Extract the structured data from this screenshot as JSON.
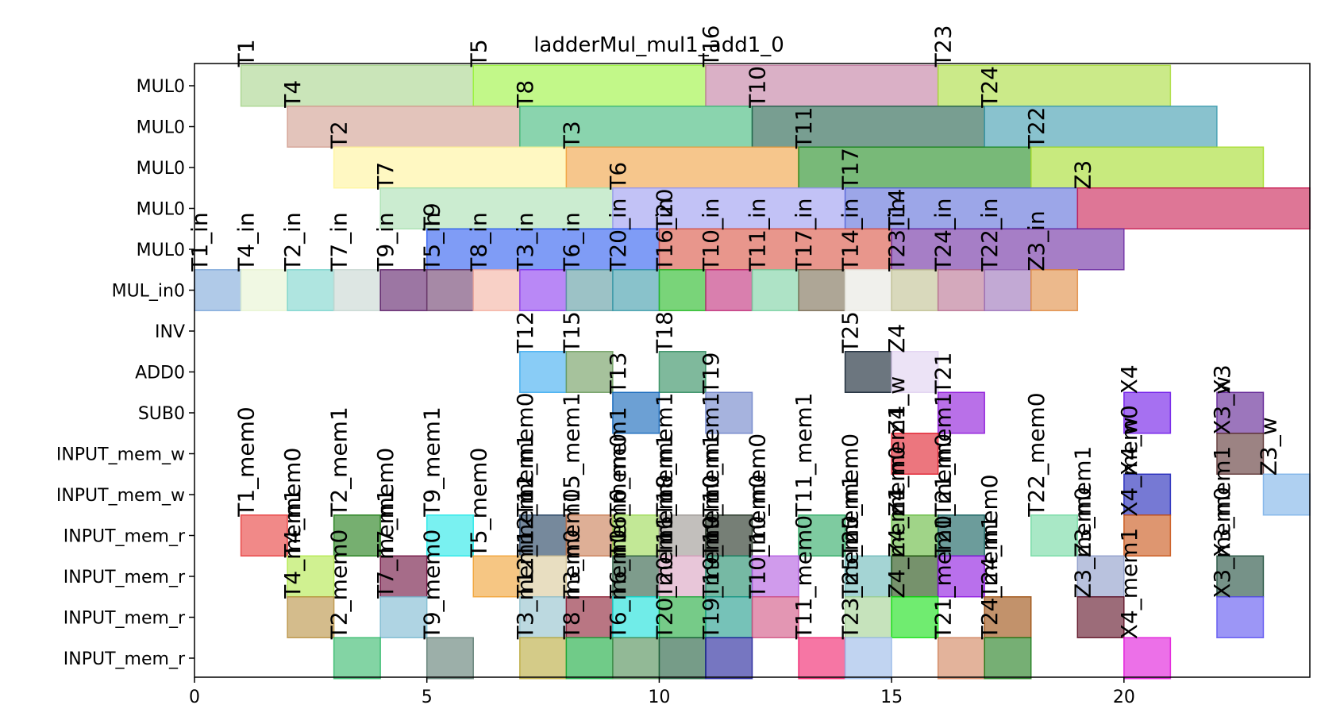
{
  "chart_data": {
    "type": "gantt",
    "title": "ladderMul_mul1_add1_0",
    "xlim": [
      0,
      24
    ],
    "x_ticks": [
      0,
      5,
      10,
      15,
      20
    ],
    "rows": [
      "MUL0",
      "MUL0",
      "MUL0",
      "MUL0",
      "MUL0",
      "MUL_in0",
      "INV",
      "ADD0",
      "SUB0",
      "INPUT_mem_w",
      "INPUT_mem_w",
      "INPUT_mem_r",
      "INPUT_mem_r",
      "INPUT_mem_r",
      "INPUT_mem_r"
    ],
    "tasks": [
      {
        "row": 0,
        "start": 1,
        "end": 6,
        "label": "T1",
        "color": "#a6d38a"
      },
      {
        "row": 0,
        "start": 6,
        "end": 11,
        "label": "T5",
        "color": "#9af33a"
      },
      {
        "row": 0,
        "start": 11,
        "end": 16,
        "label": "T16",
        "color": "#c27ba0"
      },
      {
        "row": 0,
        "start": 16,
        "end": 21,
        "label": "T23",
        "color": "#a8dc3a"
      },
      {
        "row": 1,
        "start": 2,
        "end": 7,
        "label": "T4",
        "color": "#d19c8e"
      },
      {
        "row": 1,
        "start": 7,
        "end": 12,
        "label": "T8",
        "color": "#3cb878"
      },
      {
        "row": 1,
        "start": 12,
        "end": 17,
        "label": "T10",
        "color": "#1e5e48"
      },
      {
        "row": 1,
        "start": 17,
        "end": 22,
        "label": "T24",
        "color": "#3a9aae"
      },
      {
        "row": 2,
        "start": 3,
        "end": 8,
        "label": "T2",
        "color": "#fff49a"
      },
      {
        "row": 2,
        "start": 8,
        "end": 13,
        "label": "T3",
        "color": "#f0a040"
      },
      {
        "row": 2,
        "start": 13,
        "end": 18,
        "label": "T11",
        "color": "#1e8a1e"
      },
      {
        "row": 2,
        "start": 18,
        "end": 23,
        "label": "T22",
        "color": "#a4dc28"
      },
      {
        "row": 3,
        "start": 4,
        "end": 9,
        "label": "T7",
        "color": "#a8e0b0"
      },
      {
        "row": 3,
        "start": 9,
        "end": 14,
        "label": "T6",
        "color": "#9a9af0"
      },
      {
        "row": 3,
        "start": 14,
        "end": 19,
        "label": "T17",
        "color": "#5a6ad8"
      },
      {
        "row": 3,
        "start": 19,
        "end": 24,
        "label": "Z3",
        "color": "#c81a50"
      },
      {
        "row": 4,
        "start": 5,
        "end": 10,
        "label": "T9",
        "color": "#2a5af0"
      },
      {
        "row": 4,
        "start": 10,
        "end": 15,
        "label": "T20",
        "color": "#d85040"
      },
      {
        "row": 4,
        "start": 15,
        "end": 20,
        "label": "T14",
        "color": "#6a28a0"
      },
      {
        "row": 5,
        "start": 0,
        "end": 1,
        "label": "T1_in",
        "color": "#7ba6d8"
      },
      {
        "row": 5,
        "start": 1,
        "end": 2,
        "label": "T4_in",
        "color": "#e6f4d0"
      },
      {
        "row": 5,
        "start": 2,
        "end": 3,
        "label": "T2_in",
        "color": "#7ad4cc"
      },
      {
        "row": 5,
        "start": 3,
        "end": 4,
        "label": "T7_in",
        "color": "#c6d6d0"
      },
      {
        "row": 5,
        "start": 4,
        "end": 5,
        "label": "T9_in",
        "color": "#5a1a66"
      },
      {
        "row": 5,
        "start": 5,
        "end": 6,
        "label": "T5_in",
        "color": "#6a3a6a"
      },
      {
        "row": 5,
        "start": 6,
        "end": 7,
        "label": "T8_in",
        "color": "#f4b0a0"
      },
      {
        "row": 5,
        "start": 7,
        "end": 8,
        "label": "T3_in",
        "color": "#8a38f0"
      },
      {
        "row": 5,
        "start": 8,
        "end": 9,
        "label": "T6_in",
        "color": "#5a9aa0"
      },
      {
        "row": 5,
        "start": 9,
        "end": 10,
        "label": "T20_in",
        "color": "#3a9aa8"
      },
      {
        "row": 5,
        "start": 10,
        "end": 11,
        "label": "T16_in",
        "color": "#20b820"
      },
      {
        "row": 5,
        "start": 11,
        "end": 12,
        "label": "T10_in",
        "color": "#c02a78"
      },
      {
        "row": 5,
        "start": 12,
        "end": 13,
        "label": "T11_in",
        "color": "#78d0a0"
      },
      {
        "row": 5,
        "start": 13,
        "end": 14,
        "label": "T17_in",
        "color": "#786a50"
      },
      {
        "row": 5,
        "start": 14,
        "end": 15,
        "label": "T14_in",
        "color": "#e6e6e0"
      },
      {
        "row": 5,
        "start": 15,
        "end": 16,
        "label": "T23_in",
        "color": "#c0c090"
      },
      {
        "row": 5,
        "start": 16,
        "end": 17,
        "label": "T24_in",
        "color": "#b87090"
      },
      {
        "row": 5,
        "start": 17,
        "end": 18,
        "label": "T22_in",
        "color": "#9a70b8"
      },
      {
        "row": 5,
        "start": 18,
        "end": 19,
        "label": "Z3_in",
        "color": "#e08a40"
      },
      {
        "row": 7,
        "start": 7,
        "end": 8,
        "label": "T12",
        "color": "#3aaaf0"
      },
      {
        "row": 7,
        "start": 8,
        "end": 9,
        "label": "T15",
        "color": "#6a9a5a"
      },
      {
        "row": 7,
        "start": 10,
        "end": 11,
        "label": "T18",
        "color": "#2a8a5a"
      },
      {
        "row": 7,
        "start": 14,
        "end": 15,
        "label": "T25",
        "color": "#0a1a2a"
      },
      {
        "row": 7,
        "start": 15,
        "end": 16,
        "label": "Z4",
        "color": "#e0d0f0"
      },
      {
        "row": 8,
        "start": 9,
        "end": 10,
        "label": "T13",
        "color": "#0a60b8"
      },
      {
        "row": 8,
        "start": 11,
        "end": 12,
        "label": "T19",
        "color": "#6a80c8"
      },
      {
        "row": 8,
        "start": 16,
        "end": 17,
        "label": "T21",
        "color": "#8a10d8"
      },
      {
        "row": 8,
        "start": 20,
        "end": 21,
        "label": "X4",
        "color": "#6a10e8"
      },
      {
        "row": 8,
        "start": 22,
        "end": 23,
        "label": "X3",
        "color": "#5a1a90"
      },
      {
        "row": 9,
        "start": 15,
        "end": 16,
        "label": "Z4_w",
        "color": "#e01a28"
      },
      {
        "row": 9,
        "start": 22,
        "end": 23,
        "label": "X3_w",
        "color": "#5a3030"
      },
      {
        "row": 10,
        "start": 20,
        "end": 21,
        "label": "X4_w",
        "color": "#1a20b8"
      },
      {
        "row": 10,
        "start": 23,
        "end": 24,
        "label": "Z3_w",
        "color": "#7ab0e8"
      },
      {
        "row": 11,
        "start": 1,
        "end": 2,
        "label": "T1_mem0",
        "color": "#e83a38"
      },
      {
        "row": 11,
        "start": 3,
        "end": 4,
        "label": "T2_mem1",
        "color": "#1a7a10"
      },
      {
        "row": 11,
        "start": 5,
        "end": 6,
        "label": "T9_mem1",
        "color": "#20e8e8"
      },
      {
        "row": 11,
        "start": 7,
        "end": 8,
        "label": "T12_mem0",
        "color": "#1a3a5a"
      },
      {
        "row": 11,
        "start": 8,
        "end": 9,
        "label": "T15_mem1",
        "color": "#c87a50"
      },
      {
        "row": 11,
        "start": 9,
        "end": 10,
        "label": "T6_mem1",
        "color": "#9ad850"
      },
      {
        "row": 11,
        "start": 10,
        "end": 11,
        "label": "T18_mem1",
        "color": "#9a9490"
      },
      {
        "row": 11,
        "start": 11,
        "end": 12,
        "label": "T10_mem1",
        "color": "#1a2a1a"
      },
      {
        "row": 11,
        "start": 13,
        "end": 14,
        "label": "T11_mem1",
        "color": "#28a860"
      },
      {
        "row": 11,
        "start": 15,
        "end": 16,
        "label": "Z4_mem1",
        "color": "#60b838"
      },
      {
        "row": 11,
        "start": 16,
        "end": 17,
        "label": "T21_mem1",
        "color": "#0a5a58"
      },
      {
        "row": 11,
        "start": 18,
        "end": 19,
        "label": "T22_mem0",
        "color": "#70d8a0"
      },
      {
        "row": 11,
        "start": 20,
        "end": 21,
        "label": "X4_mem0",
        "color": "#c85010"
      },
      {
        "row": 12,
        "start": 2,
        "end": 3,
        "label": "T4_mem0",
        "color": "#b0e848"
      },
      {
        "row": 12,
        "start": 4,
        "end": 5,
        "label": "T7_mem0",
        "color": "#6a0a3a"
      },
      {
        "row": 12,
        "start": 6,
        "end": 7,
        "label": "T5_mem0",
        "color": "#f0a030"
      },
      {
        "row": 12,
        "start": 7,
        "end": 8,
        "label": "T12_mem1",
        "color": "#d8c898"
      },
      {
        "row": 12,
        "start": 9,
        "end": 10,
        "label": "T16_mem0",
        "color": "#285a40"
      },
      {
        "row": 12,
        "start": 10,
        "end": 11,
        "label": "T16_mem1",
        "color": "#d8a0c0"
      },
      {
        "row": 12,
        "start": 11,
        "end": 12,
        "label": "T19_mem1",
        "color": "#1a8a68"
      },
      {
        "row": 12,
        "start": 12,
        "end": 13,
        "label": "T10_mem0",
        "color": "#b058e0"
      },
      {
        "row": 12,
        "start": 14,
        "end": 15,
        "label": "T25_mem0",
        "color": "#68b8b8"
      },
      {
        "row": 12,
        "start": 15,
        "end": 16,
        "label": "Z4_mem0",
        "color": "#1a4a0a"
      },
      {
        "row": 12,
        "start": 16,
        "end": 17,
        "label": "T21_mem0",
        "color": "#8a10e0"
      },
      {
        "row": 12,
        "start": 19,
        "end": 20,
        "label": "Z3_mem1",
        "color": "#8a9ac8"
      },
      {
        "row": 12,
        "start": 22,
        "end": 23,
        "label": "X3_mem1",
        "color": "#1a4a38"
      },
      {
        "row": 13,
        "start": 2,
        "end": 3,
        "label": "T4_mem1",
        "color": "#b89040"
      },
      {
        "row": 13,
        "start": 4,
        "end": 5,
        "label": "T7_mem1",
        "color": "#7ab8d0"
      },
      {
        "row": 13,
        "start": 7,
        "end": 8,
        "label": "T12_mem1",
        "color": "#90bfcc"
      },
      {
        "row": 13,
        "start": 8,
        "end": 9,
        "label": "T3_mem0",
        "color": "#8a1a30"
      },
      {
        "row": 13,
        "start": 9,
        "end": 10,
        "label": "T6_mem0",
        "color": "#10e0d8"
      },
      {
        "row": 13,
        "start": 10,
        "end": 11,
        "label": "T20_mem0",
        "color": "#1aa838"
      },
      {
        "row": 13,
        "start": 11,
        "end": 12,
        "label": "T19_mem0",
        "color": "#1a9a88"
      },
      {
        "row": 13,
        "start": 12,
        "end": 13,
        "label": "T10_mem0",
        "color": "#d05080"
      },
      {
        "row": 13,
        "start": 14,
        "end": 15,
        "label": "T25_mem1",
        "color": "#a0d090"
      },
      {
        "row": 13,
        "start": 15,
        "end": 16,
        "label": "Z4_mem1",
        "color": "#10e010"
      },
      {
        "row": 13,
        "start": 17,
        "end": 18,
        "label": "T24_mem0",
        "color": "#9a4a08"
      },
      {
        "row": 13,
        "start": 19,
        "end": 20,
        "label": "Z3_mem0",
        "color": "#5a0a20"
      },
      {
        "row": 13,
        "start": 22,
        "end": 23,
        "label": "X3_mem0",
        "color": "#5a50f0"
      },
      {
        "row": 14,
        "start": 3,
        "end": 4,
        "label": "T2_mem0",
        "color": "#30b868"
      },
      {
        "row": 14,
        "start": 5,
        "end": 6,
        "label": "T9_mem0",
        "color": "#5a7a70"
      },
      {
        "row": 14,
        "start": 7,
        "end": 8,
        "label": "T3_mem1",
        "color": "#b8a838"
      },
      {
        "row": 14,
        "start": 8,
        "end": 9,
        "label": "T8_mem0",
        "color": "#10a838"
      },
      {
        "row": 14,
        "start": 9,
        "end": 10,
        "label": "T6_mem0",
        "color": "#4a8a50"
      },
      {
        "row": 14,
        "start": 10,
        "end": 11,
        "label": "T20_mem1",
        "color": "#1a5a38"
      },
      {
        "row": 14,
        "start": 11,
        "end": 12,
        "label": "T19_mem0",
        "color": "#1a1a98"
      },
      {
        "row": 14,
        "start": 13,
        "end": 14,
        "label": "T11_mem0",
        "color": "#f01a68"
      },
      {
        "row": 14,
        "start": 14,
        "end": 15,
        "label": "T23_mem0",
        "color": "#98b8e8"
      },
      {
        "row": 14,
        "start": 16,
        "end": 17,
        "label": "T21_mem0",
        "color": "#d08058"
      },
      {
        "row": 14,
        "start": 17,
        "end": 18,
        "label": "T24_mem1",
        "color": "#1a7a18"
      },
      {
        "row": 14,
        "start": 20,
        "end": 21,
        "label": "X4_mem1",
        "color": "#e010d8"
      }
    ]
  }
}
